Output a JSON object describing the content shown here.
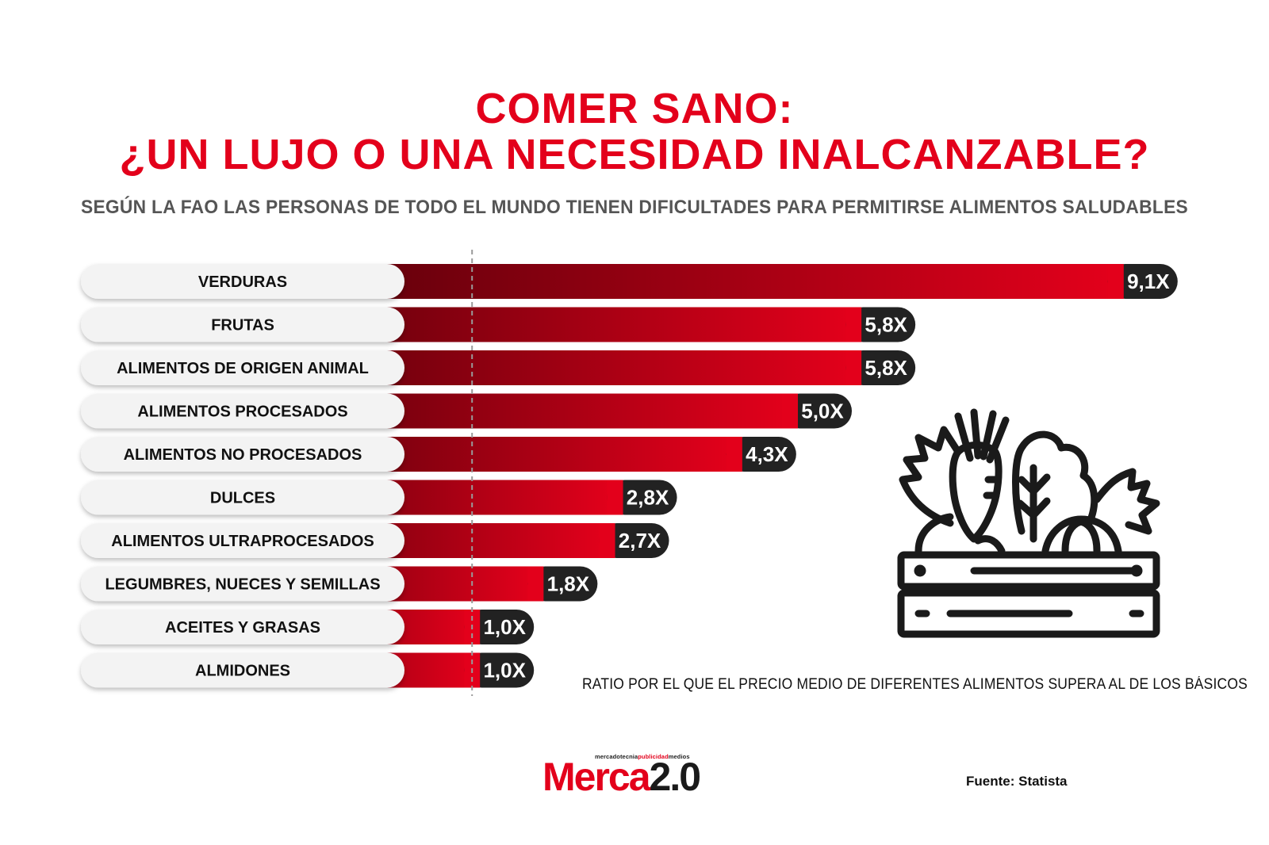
{
  "title_line1": "COMER SANO:",
  "title_line2": "¿UN LUJO O UNA NECESIDAD INALCANZABLE?",
  "subtitle": "SEGÚN LA FAO LAS PERSONAS DE TODO EL MUNDO TIENEN DIFICULTADES PARA PERMITIRSE ALIMENTOS SALUDABLES",
  "note": "RATIO POR EL QUE EL PRECIO MEDIO DE DIFERENTES ALIMENTOS SUPERA AL DE LOS BÁSICOS",
  "source": "Fuente: Statista",
  "logo": {
    "tag_part1": "mercadotecnia",
    "tag_part2": "publicidad",
    "tag_part3": "medios",
    "name_red": "Merca",
    "name_dark": "2.0"
  },
  "colors": {
    "accent": "#e3001b",
    "bar_dark": "#4a0008",
    "value_pill": "#222222",
    "label_pill": "#f3f3f3"
  },
  "chart_data": {
    "type": "bar",
    "orientation": "horizontal",
    "categories": [
      "VERDURAS",
      "FRUTAS",
      "ALIMENTOS DE ORIGEN ANIMAL",
      "ALIMENTOS PROCESADOS",
      "ALIMENTOS NO PROCESADOS",
      "DULCES",
      "ALIMENTOS ULTRAPROCESADOS",
      "LEGUMBRES, NUECES Y SEMILLAS",
      "ACEITES Y GRASAS",
      "ALMIDONES"
    ],
    "values": [
      9.1,
      5.8,
      5.8,
      5.0,
      4.3,
      2.8,
      2.7,
      1.8,
      1.0,
      1.0
    ],
    "value_labels": [
      "9,1X",
      "5,8X",
      "5,8X",
      "5,0X",
      "4,3X",
      "2,8X",
      "2,7X",
      "1,8X",
      "1,0X",
      "1,0X"
    ],
    "reference_line": 1.0,
    "grid": false,
    "legend": "none"
  }
}
